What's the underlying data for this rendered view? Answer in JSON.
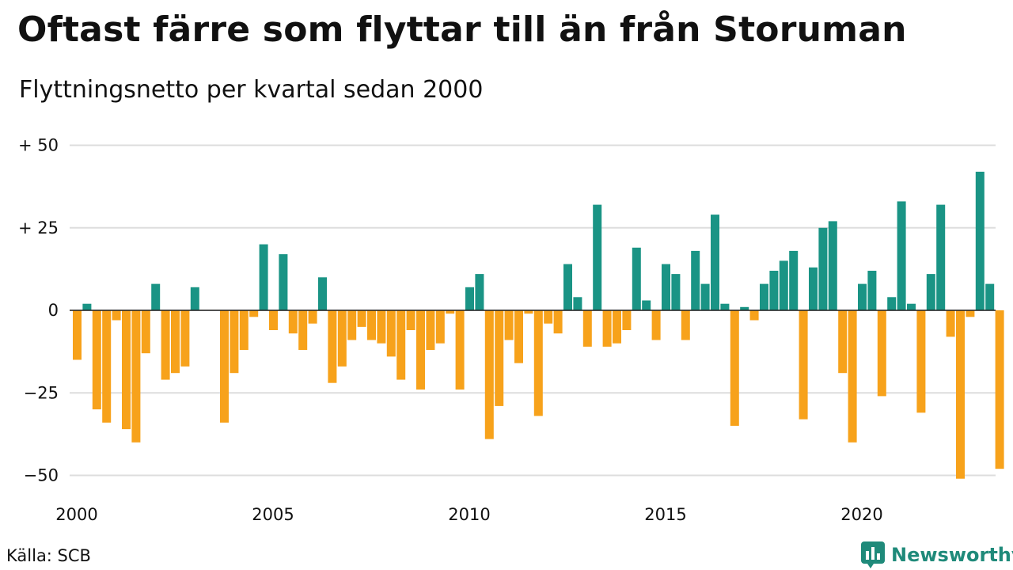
{
  "title": "Oftast färre som flyttar till än från Storuman",
  "subtitle": "Flyttningsnetto per kvartal sedan 2000",
  "source": "Källa: SCB",
  "brand": "Newsworthy",
  "colors": {
    "positive": "#1a9485",
    "negative": "#f7a21b",
    "grid": "#dddddd",
    "brand": "#1f8a7a"
  },
  "chart_data": {
    "type": "bar",
    "x_start": 2000,
    "x_step": 0.25,
    "ylim": [
      -55,
      50
    ],
    "y_ticks": [
      {
        "value": 50,
        "label": "+ 50"
      },
      {
        "value": 25,
        "label": "+ 25"
      },
      {
        "value": 0,
        "label": "0"
      },
      {
        "value": -25,
        "label": "−25"
      },
      {
        "value": -50,
        "label": "−50"
      }
    ],
    "x_ticks": [
      {
        "value": 2000,
        "label": "2000"
      },
      {
        "value": 2005,
        "label": "2005"
      },
      {
        "value": 2010,
        "label": "2010"
      },
      {
        "value": 2015,
        "label": "2015"
      },
      {
        "value": 2020,
        "label": "2020"
      }
    ],
    "values": [
      -15,
      2,
      -30,
      -34,
      -3,
      -36,
      -40,
      -13,
      8,
      -21,
      -19,
      -17,
      7,
      0,
      0,
      -34,
      -19,
      -12,
      -2,
      20,
      -6,
      17,
      -7,
      -12,
      -4,
      10,
      -22,
      -17,
      -9,
      -5,
      -9,
      -10,
      -14,
      -21,
      -6,
      -24,
      -12,
      -10,
      -1,
      -24,
      7,
      11,
      -39,
      -29,
      -9,
      -16,
      -1,
      -32,
      -4,
      -7,
      14,
      4,
      -11,
      32,
      -11,
      -10,
      -6,
      19,
      3,
      -9,
      14,
      11,
      -9,
      18,
      8,
      29,
      2,
      -35,
      1,
      -3,
      8,
      12,
      15,
      18,
      -33,
      13,
      25,
      27,
      -19,
      -40,
      8,
      12,
      -26,
      4,
      33,
      2,
      -31,
      11,
      32,
      -8,
      -51,
      -2,
      42,
      8,
      -48
    ]
  }
}
